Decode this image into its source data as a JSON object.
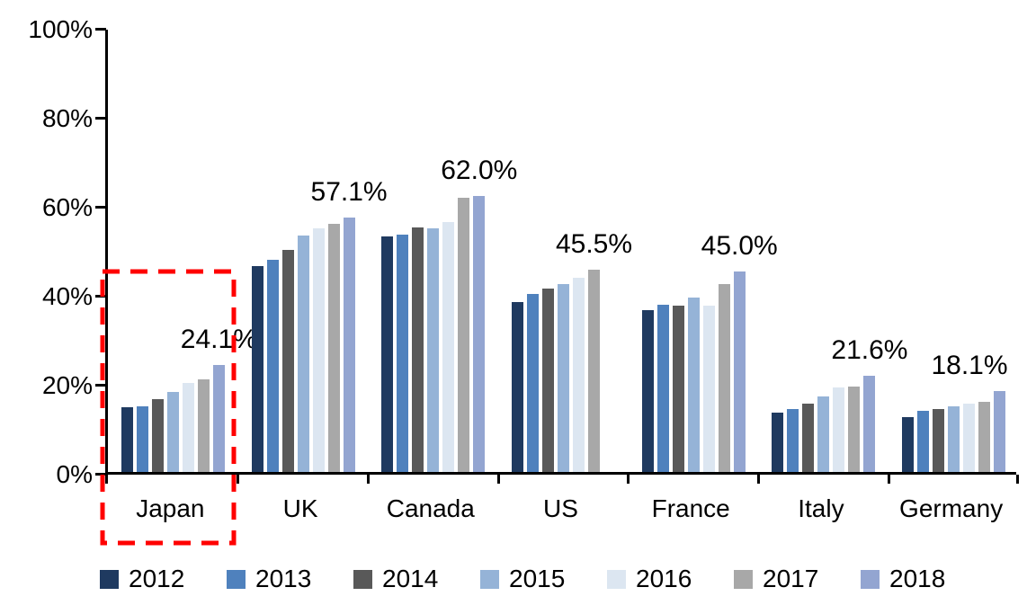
{
  "chart_data": {
    "type": "bar",
    "title": "",
    "xlabel": "",
    "ylabel": "",
    "categories": [
      "Japan",
      "UK",
      "Canada",
      "US",
      "France",
      "Italy",
      "Germany"
    ],
    "series": [
      {
        "name": "2012",
        "color": "#1F3A60",
        "values": [
          14.6,
          46.2,
          53.0,
          38.2,
          36.3,
          13.4,
          12.4
        ]
      },
      {
        "name": "2013",
        "color": "#4F81BD",
        "values": [
          14.8,
          47.7,
          53.4,
          40.0,
          37.5,
          14.2,
          13.7
        ]
      },
      {
        "name": "2014",
        "color": "#595959",
        "values": [
          16.4,
          49.9,
          54.9,
          41.2,
          37.4,
          15.4,
          14.2
        ]
      },
      {
        "name": "2015",
        "color": "#95B3D7",
        "values": [
          18.0,
          53.2,
          54.7,
          42.3,
          39.2,
          16.9,
          14.7
        ]
      },
      {
        "name": "2016",
        "color": "#DCE6F1",
        "values": [
          20.0,
          54.7,
          56.1,
          43.6,
          37.3,
          19.0,
          15.3
        ]
      },
      {
        "name": "2017",
        "color": "#A8A8A8",
        "values": [
          20.8,
          55.8,
          61.7,
          45.5,
          42.2,
          19.1,
          15.8
        ]
      },
      {
        "name": "2018",
        "color": "#93A5D1",
        "values": [
          24.1,
          57.1,
          62.0,
          null,
          45.0,
          21.6,
          18.1
        ]
      }
    ],
    "data_labels": [
      "24.1%",
      "57.1%",
      "62.0%",
      "45.5%",
      "45.0%",
      "21.6%",
      "18.1%"
    ],
    "ylim": [
      0,
      100
    ],
    "y_ticks": [
      "0%",
      "20%",
      "40%",
      "60%",
      "80%",
      "100%"
    ],
    "grid": false,
    "legend_position": "bottom",
    "axis_color": "#000000",
    "highlight": {
      "category": "Japan",
      "shape": "dashed-rectangle",
      "color": "#FF0000"
    }
  }
}
